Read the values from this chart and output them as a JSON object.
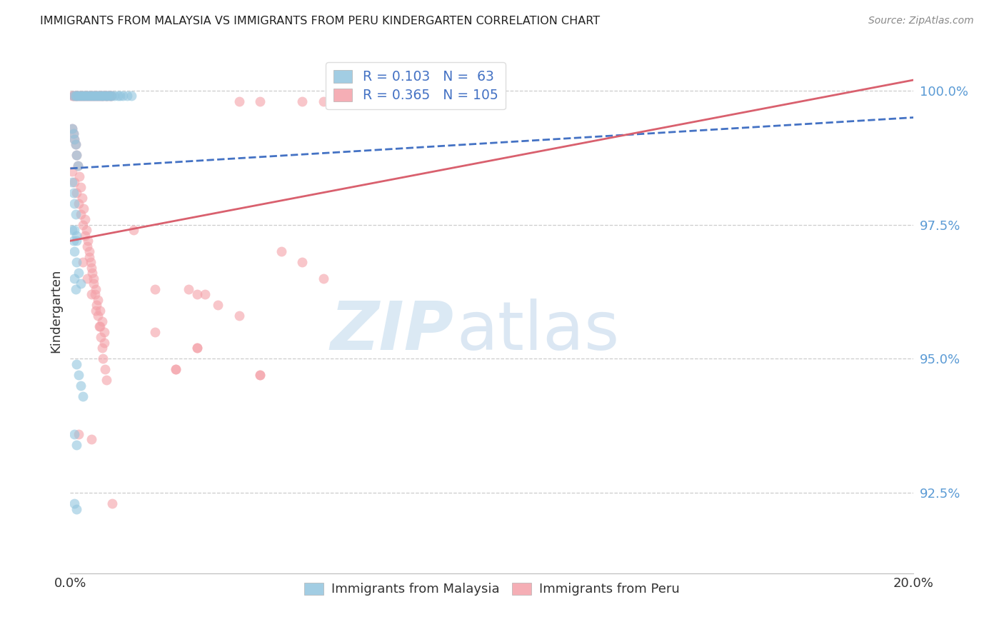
{
  "title": "IMMIGRANTS FROM MALAYSIA VS IMMIGRANTS FROM PERU KINDERGARTEN CORRELATION CHART",
  "source": "Source: ZipAtlas.com",
  "ylabel_label": "Kindergarten",
  "xmin": 0.0,
  "xmax": 20.0,
  "ymin": 91.0,
  "ymax": 100.8,
  "yticks": [
    92.5,
    95.0,
    97.5,
    100.0
  ],
  "ytick_labels": [
    "92.5%",
    "95.0%",
    "97.5%",
    "100.0%"
  ],
  "legend_R_malaysia": "R = 0.103",
  "legend_N_malaysia": "N =  63",
  "legend_R_peru": "R = 0.365",
  "legend_N_peru": "N = 105",
  "malaysia_color": "#92c5de",
  "peru_color": "#f4a0a8",
  "malaysia_line_color": "#4472c4",
  "peru_line_color": "#d9606e",
  "malaysia_reg_y0": 98.55,
  "malaysia_reg_y1": 99.5,
  "peru_reg_y0": 97.2,
  "peru_reg_y1": 100.2,
  "malaysia_scatter_x": [
    0.08,
    0.12,
    0.15,
    0.18,
    0.22,
    0.25,
    0.28,
    0.32,
    0.35,
    0.38,
    0.42,
    0.45,
    0.48,
    0.52,
    0.55,
    0.58,
    0.62,
    0.65,
    0.68,
    0.72,
    0.75,
    0.78,
    0.82,
    0.85,
    0.88,
    0.92,
    0.95,
    0.98,
    1.05,
    1.12,
    1.18,
    1.25,
    1.35,
    1.45,
    0.05,
    0.08,
    0.1,
    0.12,
    0.15,
    0.18,
    0.05,
    0.08,
    0.1,
    0.12,
    0.05,
    0.08,
    0.1,
    0.15,
    0.2,
    0.25,
    0.15,
    0.2,
    0.25,
    0.3,
    0.1,
    0.15,
    0.1,
    0.15,
    0.1,
    0.15,
    0.1,
    0.12,
    0.15
  ],
  "malaysia_scatter_y": [
    99.9,
    99.9,
    99.9,
    99.9,
    99.9,
    99.9,
    99.9,
    99.9,
    99.9,
    99.9,
    99.9,
    99.9,
    99.9,
    99.9,
    99.9,
    99.9,
    99.9,
    99.9,
    99.9,
    99.9,
    99.9,
    99.9,
    99.9,
    99.9,
    99.9,
    99.9,
    99.9,
    99.9,
    99.9,
    99.9,
    99.9,
    99.9,
    99.9,
    99.9,
    99.3,
    99.2,
    99.1,
    99.0,
    98.8,
    98.6,
    98.3,
    98.1,
    97.9,
    97.7,
    97.4,
    97.2,
    97.0,
    96.8,
    96.6,
    96.4,
    94.9,
    94.7,
    94.5,
    94.3,
    93.6,
    93.4,
    92.3,
    92.2,
    97.4,
    97.3,
    96.5,
    96.3,
    97.2
  ],
  "peru_scatter_x": [
    0.05,
    0.08,
    0.1,
    0.12,
    0.15,
    0.18,
    0.22,
    0.25,
    0.28,
    0.32,
    0.35,
    0.38,
    0.42,
    0.45,
    0.48,
    0.52,
    0.55,
    0.58,
    0.62,
    0.65,
    0.68,
    0.72,
    0.75,
    0.78,
    0.82,
    0.85,
    0.88,
    0.92,
    0.95,
    0.98,
    0.05,
    0.08,
    0.1,
    0.12,
    0.15,
    0.18,
    0.22,
    0.25,
    0.28,
    0.32,
    0.35,
    0.38,
    0.42,
    0.45,
    0.48,
    0.52,
    0.55,
    0.58,
    0.62,
    0.65,
    0.68,
    0.72,
    0.75,
    0.78,
    0.82,
    0.85,
    0.05,
    0.1,
    0.15,
    0.2,
    0.25,
    0.3,
    0.35,
    0.4,
    0.45,
    0.5,
    0.55,
    0.6,
    0.65,
    0.7,
    0.75,
    0.8,
    0.3,
    0.4,
    0.5,
    0.6,
    0.7,
    0.8,
    1.5,
    2.0,
    2.5,
    3.0,
    3.5,
    4.0,
    4.5,
    5.0,
    5.5,
    6.0,
    6.5,
    3.2,
    2.8,
    0.2,
    0.5,
    1.0,
    2.0,
    2.5,
    3.0,
    4.5,
    3.0,
    4.5,
    5.5,
    6.0,
    4.0,
    6.5,
    7.0
  ],
  "peru_scatter_y": [
    99.9,
    99.9,
    99.9,
    99.9,
    99.9,
    99.9,
    99.9,
    99.9,
    99.9,
    99.9,
    99.9,
    99.9,
    99.9,
    99.9,
    99.9,
    99.9,
    99.9,
    99.9,
    99.9,
    99.9,
    99.9,
    99.9,
    99.9,
    99.9,
    99.9,
    99.9,
    99.9,
    99.9,
    99.9,
    99.9,
    99.3,
    99.2,
    99.1,
    99.0,
    98.8,
    98.6,
    98.4,
    98.2,
    98.0,
    97.8,
    97.6,
    97.4,
    97.2,
    97.0,
    96.8,
    96.6,
    96.4,
    96.2,
    96.0,
    95.8,
    95.6,
    95.4,
    95.2,
    95.0,
    94.8,
    94.6,
    98.5,
    98.3,
    98.1,
    97.9,
    97.7,
    97.5,
    97.3,
    97.1,
    96.9,
    96.7,
    96.5,
    96.3,
    96.1,
    95.9,
    95.7,
    95.5,
    96.8,
    96.5,
    96.2,
    95.9,
    95.6,
    95.3,
    97.4,
    96.3,
    94.8,
    95.2,
    96.0,
    95.8,
    94.7,
    97.0,
    96.8,
    96.5,
    99.8,
    96.2,
    96.3,
    93.6,
    93.5,
    92.3,
    95.5,
    94.8,
    95.2,
    94.7,
    96.2,
    99.8,
    99.8,
    99.8,
    99.8,
    99.8,
    99.8
  ]
}
